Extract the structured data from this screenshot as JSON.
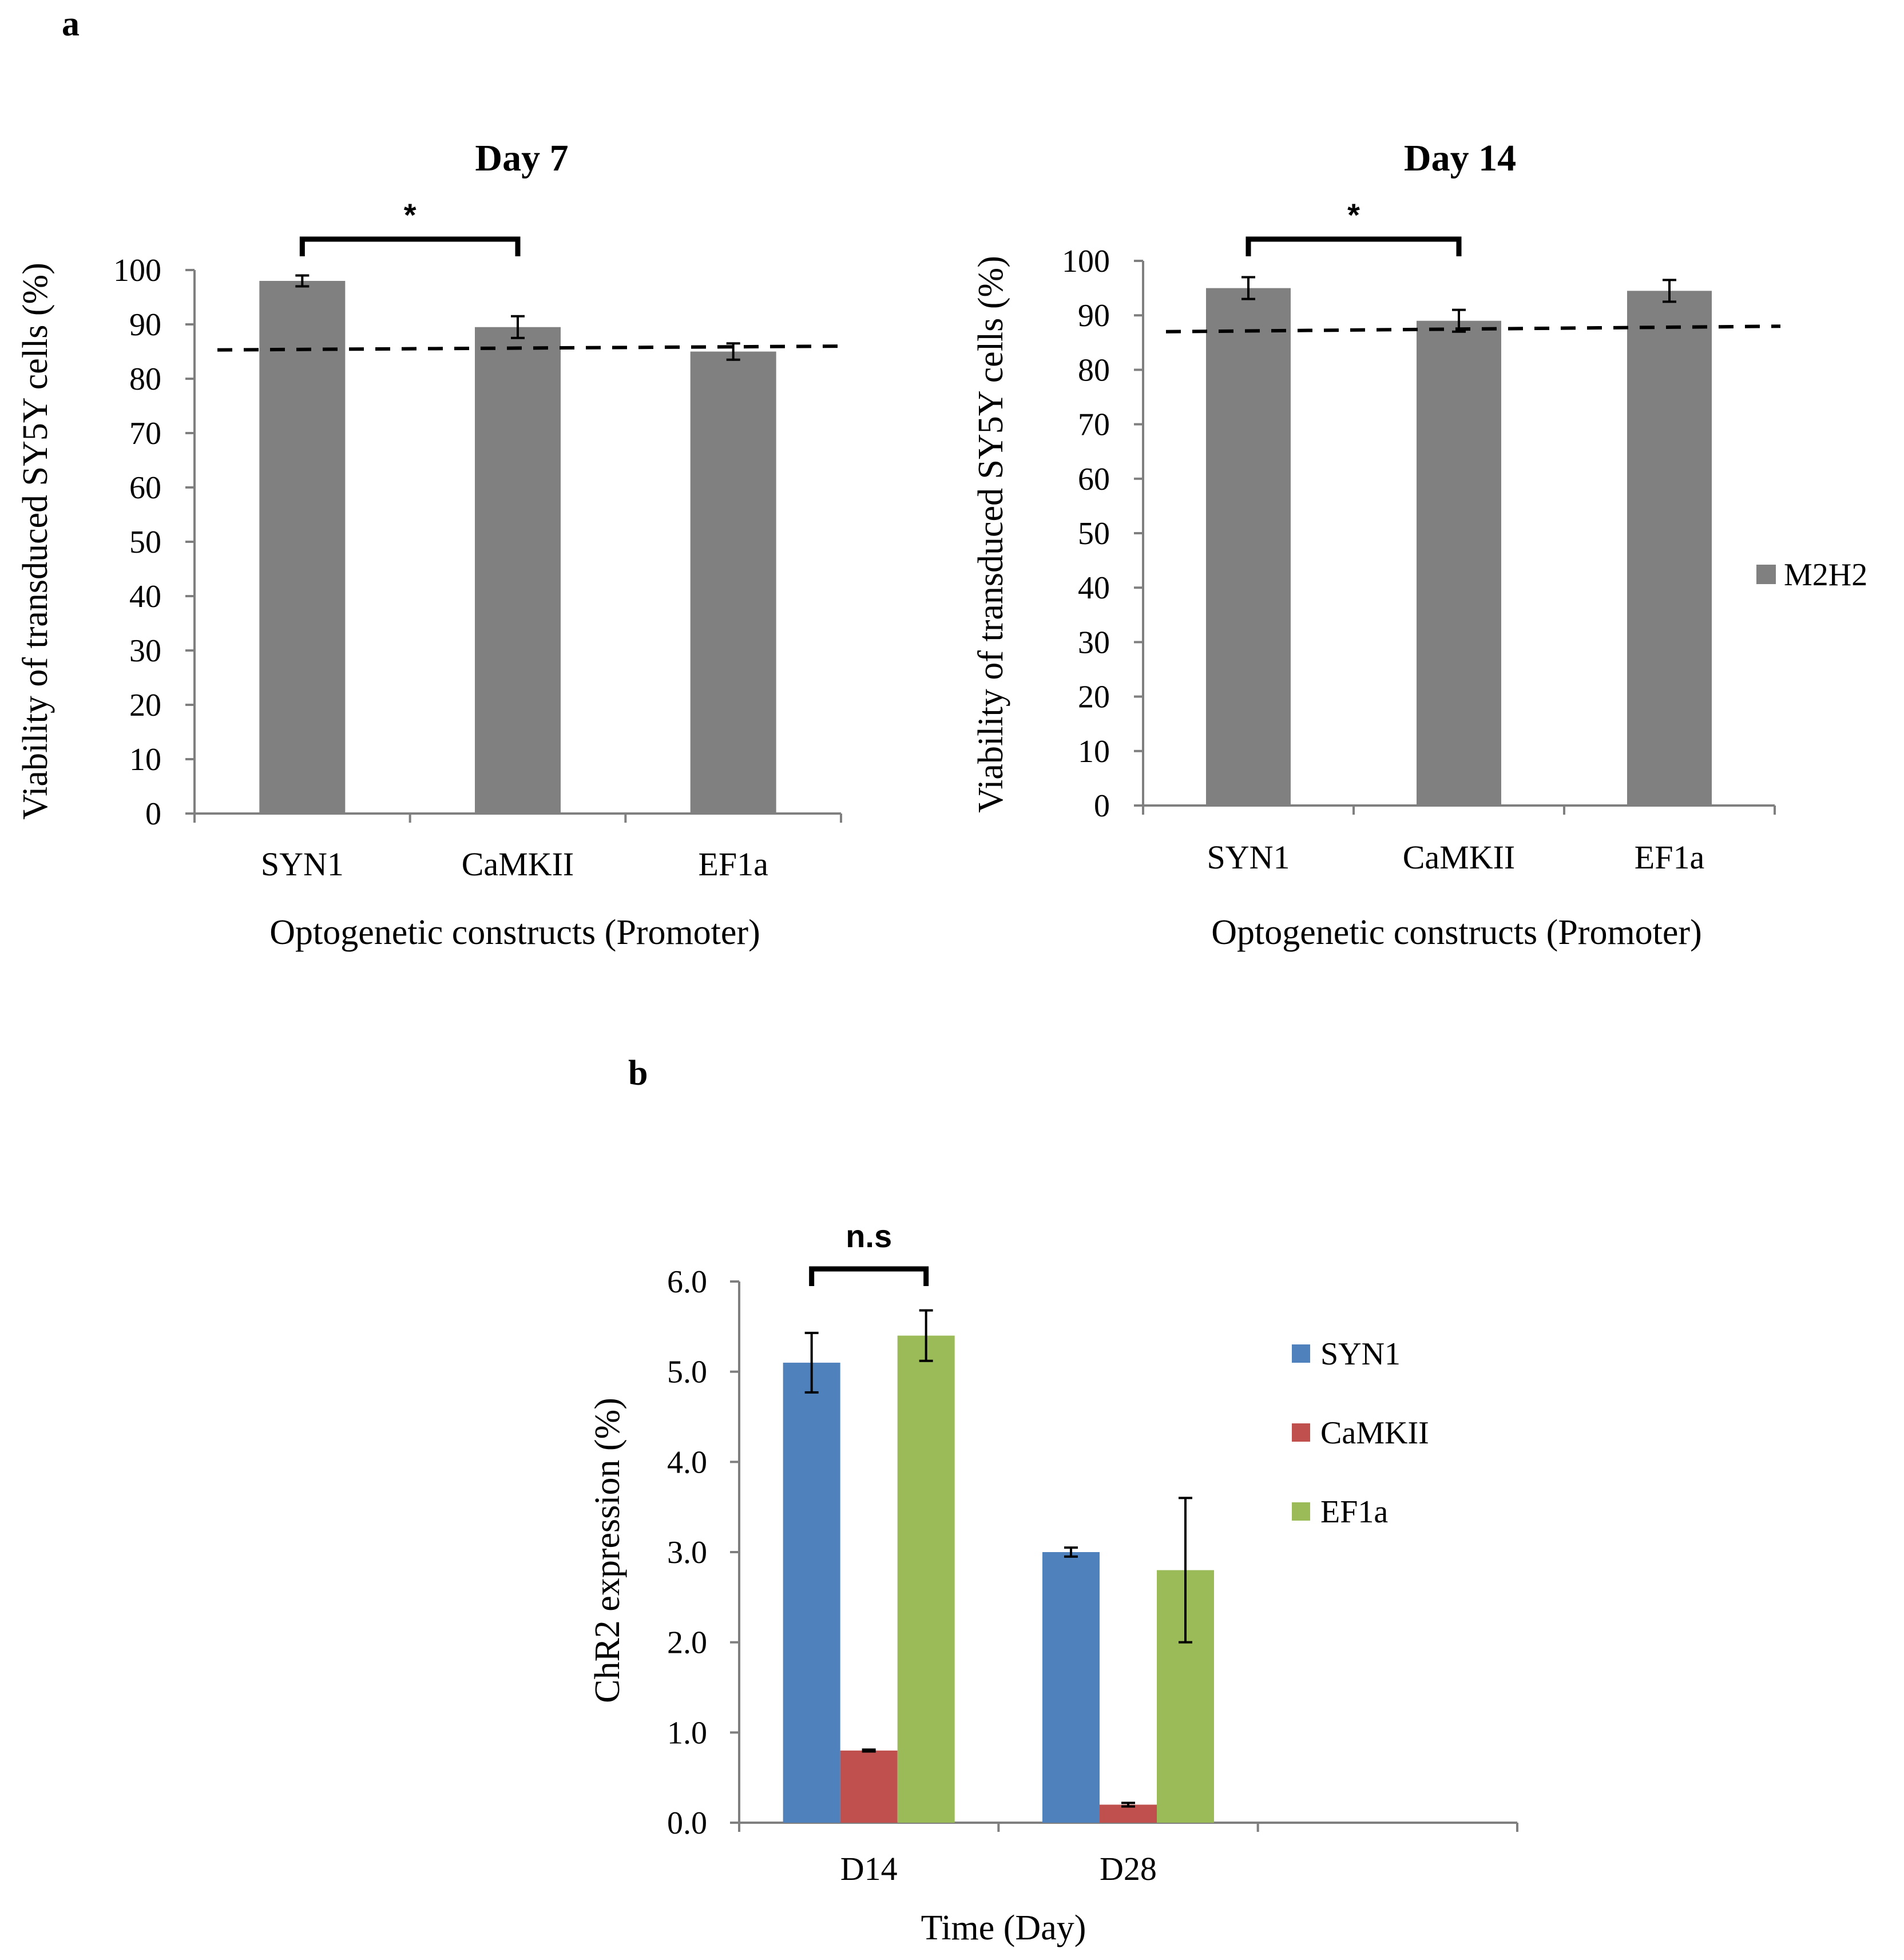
{
  "panel_labels": {
    "a": "a",
    "b": "b"
  },
  "colors": {
    "gray_bar": "#808080",
    "syn1": "#4f81bd",
    "camkii": "#c0504d",
    "ef1a": "#9bbb59"
  },
  "chart_data": [
    {
      "id": "day7",
      "type": "bar",
      "title": "Day 7",
      "xlabel": "Optogenetic constructs (Promoter)",
      "ylabel": "Viability of transduced SY5Y cells (%)",
      "categories": [
        "SYN1",
        "CaMKII",
        "EF1a"
      ],
      "series": [
        {
          "name": "M2H2",
          "values": [
            98,
            89.5,
            85
          ],
          "errors": [
            1,
            2,
            1.5
          ]
        }
      ],
      "ylim": [
        0,
        100
      ],
      "yticks": [
        "0",
        "10",
        "20",
        "30",
        "40",
        "50",
        "60",
        "70",
        "80",
        "90",
        "100"
      ],
      "reference_line": {
        "y_start": 85.3,
        "y_end": 86
      },
      "significance": {
        "from": 0,
        "to": 1,
        "label": "*"
      },
      "legend": false
    },
    {
      "id": "day14",
      "type": "bar",
      "title": "Day 14",
      "xlabel": "Optogenetic constructs (Promoter)",
      "ylabel": "Viability of transduced SY5Y cells (%)",
      "categories": [
        "SYN1",
        "CaMKII",
        "EF1a"
      ],
      "series": [
        {
          "name": "M2H2",
          "values": [
            95,
            89,
            94.5
          ],
          "errors": [
            2,
            2,
            2
          ]
        }
      ],
      "ylim": [
        0,
        100
      ],
      "yticks": [
        "0",
        "10",
        "20",
        "30",
        "40",
        "50",
        "60",
        "70",
        "80",
        "90",
        "100"
      ],
      "reference_line": {
        "y_start": 87,
        "y_end": 88
      },
      "significance": {
        "from": 0,
        "to": 1,
        "label": "*"
      },
      "legend": true,
      "legend_position": "right"
    },
    {
      "id": "chr2",
      "type": "bar",
      "title": "",
      "xlabel": "Time (Day)",
      "ylabel": "ChR2 expression (%)",
      "categories": [
        "D14",
        "D28",
        ""
      ],
      "series": [
        {
          "name": "SYN1",
          "values": [
            5.1,
            3.0,
            null
          ],
          "errors": [
            0.33,
            0.05,
            null
          ]
        },
        {
          "name": "CaMKII",
          "values": [
            0.8,
            0.2,
            null
          ],
          "errors": [
            0.01,
            0.02,
            null
          ]
        },
        {
          "name": "EF1a",
          "values": [
            5.4,
            2.8,
            null
          ],
          "errors": [
            0.28,
            0.8,
            null
          ]
        }
      ],
      "ylim": [
        0,
        6
      ],
      "yticks": [
        "0.0",
        "1.0",
        "2.0",
        "3.0",
        "4.0",
        "5.0",
        "6.0"
      ],
      "significance": {
        "from_series": 0,
        "to_series": 2,
        "category": 0,
        "label": "n.s"
      },
      "legend": true,
      "legend_position": "right"
    }
  ]
}
